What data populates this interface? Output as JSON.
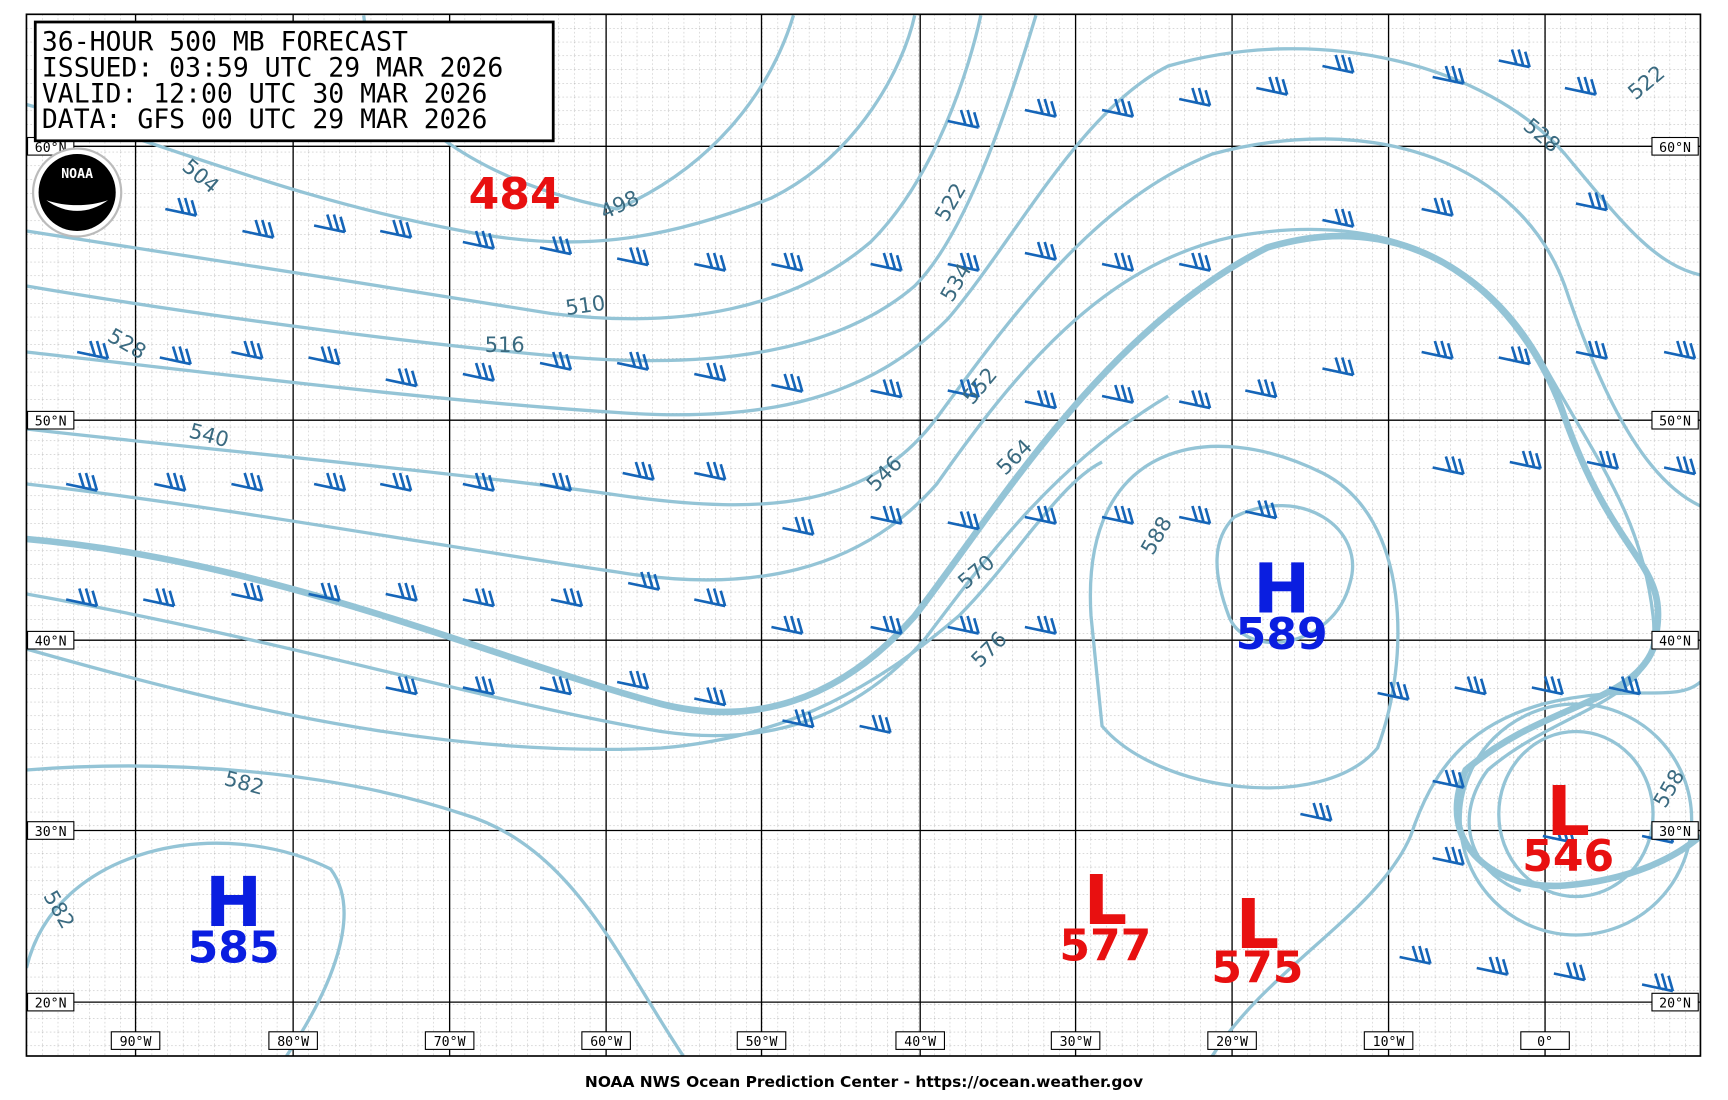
{
  "header": {
    "lines": [
      "36-HOUR 500 MB FORECAST",
      "ISSUED: 03:59 UTC 29 MAR 2026",
      "VALID:  12:00 UTC 30 MAR 2026",
      "DATA:  GFS 00 UTC 29 MAR 2026"
    ]
  },
  "logo": "NOAA",
  "lat_labels": [
    "60°N",
    "50°N",
    "40°N",
    "30°N",
    "20°N"
  ],
  "lon_labels": [
    "90°W",
    "80°W",
    "70°W",
    "60°W",
    "50°W",
    "40°W",
    "30°W",
    "20°W",
    "10°W",
    "0°"
  ],
  "centers": [
    {
      "type": "H",
      "value": 589
    },
    {
      "type": "H",
      "value": 585
    },
    {
      "type": "L",
      "value": 577
    },
    {
      "type": "L",
      "value": 575
    },
    {
      "type": "L",
      "value": 546
    },
    {
      "value": 484
    }
  ],
  "contour_labels": [
    504,
    498,
    510,
    516,
    528,
    540,
    522,
    534,
    552,
    546,
    564,
    570,
    576,
    582,
    582,
    588,
    558,
    528,
    522
  ],
  "footer": "NOAA NWS Ocean Prediction Center - https://ocean.weather.gov"
}
